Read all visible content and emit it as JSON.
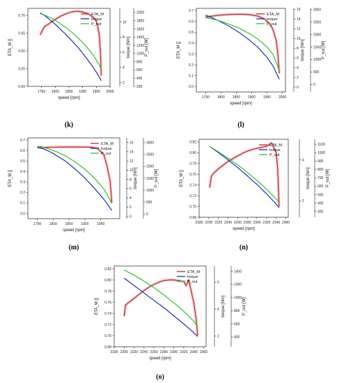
{
  "colors": {
    "eta": "#b5301f",
    "torque": "#1a2fb8",
    "pout": "#2fbf2f",
    "eta_shade": "#f2b5c4"
  },
  "chart_data": [
    {
      "panel": "(k)",
      "type": "line",
      "xlabel": "speed [rpm]",
      "ylabels": [
        "ETA_M []",
        "torque [Nm]",
        "P_out [W]"
      ],
      "xlim": [
        1700,
        2000
      ],
      "xticks": [
        1750,
        1800,
        1850,
        1900,
        1950,
        2000
      ],
      "axes": [
        {
          "key": "eta",
          "ylim": [
            0.5,
            0.72
          ],
          "ticks": [
            0.5,
            0.55,
            0.6,
            0.65,
            0.7
          ],
          "side": "left"
        },
        {
          "key": "torque",
          "ylim": [
            1.5,
            11.8
          ],
          "ticks": [
            2,
            4,
            6,
            8,
            10
          ],
          "side": "right1"
        },
        {
          "key": "pout",
          "ylim": [
            200,
            2100
          ],
          "ticks": [
            200,
            400,
            600,
            800,
            1000,
            1200,
            1400,
            1600,
            1800,
            2000
          ],
          "side": "right2"
        }
      ],
      "series": [
        {
          "name": "ETA_M",
          "axis": "eta",
          "color": "#b5301f",
          "x": [
            1745,
            1760,
            1780,
            1800,
            1820,
            1840,
            1860,
            1880,
            1900,
            1920,
            1940,
            1950,
            1955,
            1960,
            1965,
            1968
          ],
          "y": [
            0.645,
            0.668,
            0.678,
            0.689,
            0.698,
            0.705,
            0.71,
            0.712,
            0.71,
            0.705,
            0.694,
            0.684,
            0.67,
            0.648,
            0.6,
            0.53
          ]
        },
        {
          "name": "torque",
          "axis": "torque",
          "color": "#1a2fb8",
          "x": [
            1745,
            1760,
            1780,
            1800,
            1820,
            1840,
            1860,
            1880,
            1900,
            1920,
            1940,
            1960,
            1968
          ],
          "y": [
            11.2,
            10.9,
            10.3,
            9.7,
            9.0,
            8.3,
            7.55,
            6.75,
            5.9,
            4.95,
            3.95,
            2.8,
            2.25
          ]
        },
        {
          "name": "P_out",
          "axis": "pout",
          "color": "#2fbf2f",
          "x": [
            1745,
            1760,
            1780,
            1800,
            1820,
            1840,
            1860,
            1880,
            1900,
            1920,
            1940,
            1960,
            1968
          ],
          "y": [
            1970,
            1940,
            1880,
            1810,
            1720,
            1630,
            1520,
            1400,
            1270,
            1120,
            950,
            730,
            620
          ]
        }
      ]
    },
    {
      "panel": "(l)",
      "type": "line",
      "xlabel": "speed [rpm]",
      "ylabels": [
        "ETA_M []",
        "torque [Nm]",
        "P_out [W]"
      ],
      "xlim": [
        1720,
        2010
      ],
      "xticks": [
        1750,
        1800,
        1850,
        1900,
        1950,
        2000
      ],
      "axes": [
        {
          "key": "eta",
          "ylim": [
            -0.05,
            0.72
          ],
          "ticks": [
            0.0,
            0.1,
            0.2,
            0.3,
            0.4,
            0.5,
            0.6,
            0.7
          ],
          "side": "left"
        },
        {
          "key": "torque",
          "ylim": [
            -1,
            16.2
          ],
          "ticks": [
            0,
            2,
            4,
            6,
            8,
            10,
            12,
            14,
            16
          ],
          "side": "right1"
        },
        {
          "key": "pout",
          "ylim": [
            -300,
            3050
          ],
          "ticks": [
            0,
            500,
            1000,
            1500,
            2000,
            2500,
            3000
          ],
          "side": "right2"
        }
      ],
      "series": [
        {
          "name": "ETA_M",
          "axis": "eta",
          "color": "#b5301f",
          "x": [
            1750,
            1760,
            1780,
            1800,
            1820,
            1840,
            1860,
            1880,
            1900,
            1920,
            1940,
            1960,
            1970,
            1980,
            1985,
            1990
          ],
          "y": [
            0.64,
            0.645,
            0.652,
            0.658,
            0.662,
            0.665,
            0.666,
            0.665,
            0.66,
            0.648,
            0.625,
            0.575,
            0.52,
            0.42,
            0.3,
            0.12
          ]
        },
        {
          "name": "torque",
          "axis": "torque",
          "color": "#1a2fb8",
          "x": [
            1750,
            1770,
            1800,
            1830,
            1860,
            1890,
            1920,
            1950,
            1970,
            1990
          ],
          "y": [
            14.8,
            14.3,
            13.4,
            12.4,
            11.2,
            9.8,
            8.2,
            6.1,
            4.3,
            1.6
          ]
        },
        {
          "name": "P_out",
          "axis": "pout",
          "color": "#2fbf2f",
          "x": [
            1750,
            1770,
            1800,
            1830,
            1860,
            1890,
            1920,
            1950,
            1970,
            1990
          ],
          "y": [
            2680,
            2630,
            2530,
            2400,
            2250,
            2060,
            1820,
            1500,
            1200,
            560
          ]
        }
      ]
    },
    {
      "panel": "(m)",
      "type": "line",
      "xlabel": "speed [rpm]",
      "ylabels": [
        "ETA_M []",
        "torque [Nm]",
        "P_out [W]"
      ],
      "xlim": [
        1720,
        2010
      ],
      "xticks": [
        1750,
        1800,
        1850,
        1900,
        1950
      ],
      "axes": [
        {
          "key": "eta",
          "ylim": [
            -0.05,
            0.72
          ],
          "ticks": [
            0.0,
            0.1,
            0.2,
            0.3,
            0.4,
            0.5,
            0.6,
            0.7
          ],
          "side": "left"
        },
        {
          "key": "torque",
          "ylim": [
            -0.5,
            17
          ],
          "ticks": [
            0,
            2,
            4,
            6,
            8,
            10,
            12,
            14,
            16
          ],
          "side": "right1"
        },
        {
          "key": "pout",
          "ylim": [
            -200,
            3200
          ],
          "ticks": [
            0,
            500,
            1000,
            1500,
            2000,
            2500,
            3000
          ],
          "side": "right2"
        }
      ],
      "series": [
        {
          "name": "ETA_M",
          "axis": "eta",
          "color": "#b5301f",
          "x": [
            1750,
            1760,
            1780,
            1800,
            1830,
            1860,
            1890,
            1920,
            1940,
            1960,
            1970,
            1980,
            1985
          ],
          "y": [
            0.625,
            0.628,
            0.63,
            0.632,
            0.633,
            0.633,
            0.633,
            0.632,
            0.62,
            0.56,
            0.45,
            0.3,
            0.1
          ]
        },
        {
          "name": "torque",
          "axis": "torque",
          "color": "#1a2fb8",
          "x": [
            1750,
            1770,
            1790,
            1810,
            1840,
            1870,
            1900,
            1930,
            1960,
            1985
          ],
          "y": [
            15.0,
            14.6,
            14.0,
            13.2,
            11.9,
            10.2,
            8.3,
            6.1,
            3.7,
            1.3
          ]
        },
        {
          "name": "P_out",
          "axis": "pout",
          "color": "#2fbf2f",
          "x": [
            1750,
            1770,
            1790,
            1810,
            1840,
            1870,
            1900,
            1930,
            1960,
            1985
          ],
          "y": [
            2850,
            2800,
            2720,
            2620,
            2430,
            2180,
            1880,
            1510,
            1050,
            450
          ]
        }
      ]
    },
    {
      "panel": "(n)",
      "type": "line",
      "xlabel": "speed [rpm]",
      "ylabels": [
        "ETA_M []",
        "torque [Nm]",
        "P_out [W]"
      ],
      "xlim": [
        2180,
        2365
      ],
      "xticks": [
        2180,
        2200,
        2220,
        2240,
        2260,
        2280,
        2300,
        2320,
        2340,
        2360
      ],
      "axes": [
        {
          "key": "eta",
          "ylim": [
            0.68,
            0.825
          ],
          "ticks": [
            0.68,
            0.7,
            0.72,
            0.74,
            0.76,
            0.78,
            0.8,
            0.82
          ],
          "side": "left"
        },
        {
          "key": "torque",
          "ylim": [
            1.2,
            5.0
          ],
          "ticks": [
            2,
            4
          ],
          "side": "right1"
        },
        {
          "key": "pout",
          "ylim": [
            230,
            1160
          ],
          "ticks": [
            300,
            400,
            500,
            600,
            700,
            800,
            900,
            1000,
            1100
          ],
          "side": "right2"
        }
      ],
      "series": [
        {
          "name": "ETA_M",
          "axis": "eta",
          "color": "#b5301f",
          "x": [
            2202,
            2205,
            2210,
            2220,
            2230,
            2240,
            2250,
            2260,
            2270,
            2280,
            2290,
            2300,
            2310,
            2320,
            2325,
            2330,
            2335,
            2340,
            2343,
            2346
          ],
          "y": [
            0.735,
            0.755,
            0.762,
            0.77,
            0.777,
            0.784,
            0.789,
            0.794,
            0.799,
            0.803,
            0.806,
            0.808,
            0.81,
            0.812,
            0.815,
            0.818,
            0.81,
            0.8,
            0.77,
            0.7
          ]
        },
        {
          "name": "torque",
          "axis": "torque",
          "color": "#1a2fb8",
          "x": [
            2202,
            2220,
            2240,
            2260,
            2280,
            2300,
            2320,
            2340,
            2346
          ],
          "y": [
            4.65,
            4.35,
            4.0,
            3.62,
            3.22,
            2.8,
            2.34,
            1.84,
            1.65
          ]
        },
        {
          "name": "P_out",
          "axis": "pout",
          "color": "#2fbf2f",
          "x": [
            2202,
            2220,
            2240,
            2260,
            2280,
            2300,
            2320,
            2340,
            2346
          ],
          "y": [
            1075,
            1010,
            935,
            855,
            765,
            670,
            565,
            450,
            405
          ]
        }
      ]
    },
    {
      "panel": "(o)",
      "type": "line",
      "xlabel": "speed [rpm]",
      "ylabels": [
        "ETA_M []",
        "torque [Nm]",
        "P_out [W]"
      ],
      "xlim": [
        2180,
        2365
      ],
      "xticks": [
        2180,
        2200,
        2220,
        2240,
        2260,
        2280,
        2300,
        2320,
        2340,
        2360
      ],
      "axes": [
        {
          "key": "eta",
          "ylim": [
            0.68,
            0.825
          ],
          "ticks": [
            0.68,
            0.7,
            0.72,
            0.74,
            0.76,
            0.78,
            0.8,
            0.82
          ],
          "side": "left"
        },
        {
          "key": "torque",
          "ylim": [
            1.2,
            7.2
          ],
          "ticks": [
            2,
            4,
            6
          ],
          "side": "right1"
        },
        {
          "key": "pout",
          "ylim": [
            250,
            1480
          ],
          "ticks": [
            400,
            600,
            800,
            1000,
            1200,
            1400
          ],
          "side": "right2"
        }
      ],
      "series": [
        {
          "name": "ETA_M",
          "axis": "eta",
          "color": "#b5301f",
          "x": [
            2200,
            2203,
            2210,
            2220,
            2230,
            2240,
            2250,
            2260,
            2270,
            2280,
            2290,
            2300,
            2310,
            2320,
            2325,
            2330,
            2335,
            2340,
            2345,
            2348
          ],
          "y": [
            0.735,
            0.755,
            0.76,
            0.767,
            0.774,
            0.781,
            0.787,
            0.792,
            0.796,
            0.799,
            0.8,
            0.8,
            0.799,
            0.797,
            0.79,
            0.8,
            0.78,
            0.76,
            0.73,
            0.7
          ]
        },
        {
          "name": "torque",
          "axis": "torque",
          "color": "#1a2fb8",
          "x": [
            2200,
            2220,
            2240,
            2260,
            2280,
            2300,
            2320,
            2340,
            2348
          ],
          "y": [
            6.3,
            5.75,
            5.2,
            4.65,
            4.1,
            3.5,
            2.9,
            2.25,
            1.95
          ]
        },
        {
          "name": "P_out",
          "axis": "pout",
          "color": "#2fbf2f",
          "x": [
            2200,
            2220,
            2240,
            2260,
            2280,
            2300,
            2320,
            2340,
            2348
          ],
          "y": [
            1420,
            1340,
            1250,
            1150,
            1040,
            920,
            790,
            640,
            560
          ]
        }
      ]
    }
  ]
}
